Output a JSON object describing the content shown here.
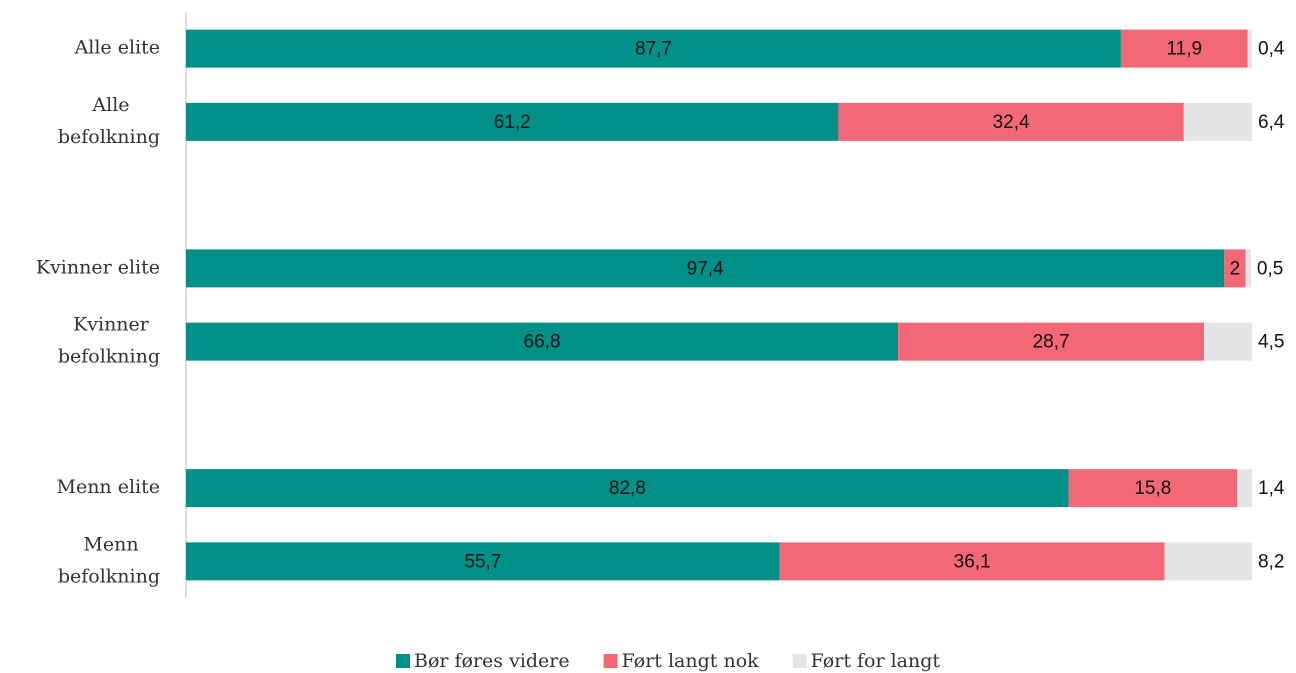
{
  "chart_data": {
    "type": "stacked_barh",
    "categories": [
      "Alle elite",
      "Alle befolkning",
      null,
      "Kvinner elite",
      "Kvinner befolkning",
      null,
      "Menn elite",
      "Menn befolkning"
    ],
    "xlim": [
      0,
      100
    ],
    "series": [
      {
        "name": "Bør føres videre",
        "color": "#009088",
        "values": [
          87.7,
          61.2,
          null,
          97.4,
          66.8,
          null,
          82.8,
          55.7
        ],
        "value_labels": [
          "87,7",
          "61,2",
          null,
          "97,4",
          "66,8",
          null,
          "82,8",
          "55,7"
        ]
      },
      {
        "name": "Ført langt nok",
        "color": "#f26877",
        "values": [
          11.9,
          32.4,
          null,
          2,
          28.7,
          null,
          15.8,
          36.1
        ],
        "value_labels": [
          "11,9",
          "32,4",
          null,
          "2",
          "28,7",
          null,
          "15,8",
          "36,1"
        ]
      },
      {
        "name": "Ført for langt",
        "color": "#e5e5e5",
        "values": [
          0.4,
          6.4,
          null,
          0.5,
          4.5,
          null,
          1.4,
          8.2
        ],
        "value_labels": [
          "0,4",
          "6,4",
          null,
          "0,5",
          "4,5",
          null,
          "1,4",
          "8,2"
        ]
      }
    ]
  }
}
